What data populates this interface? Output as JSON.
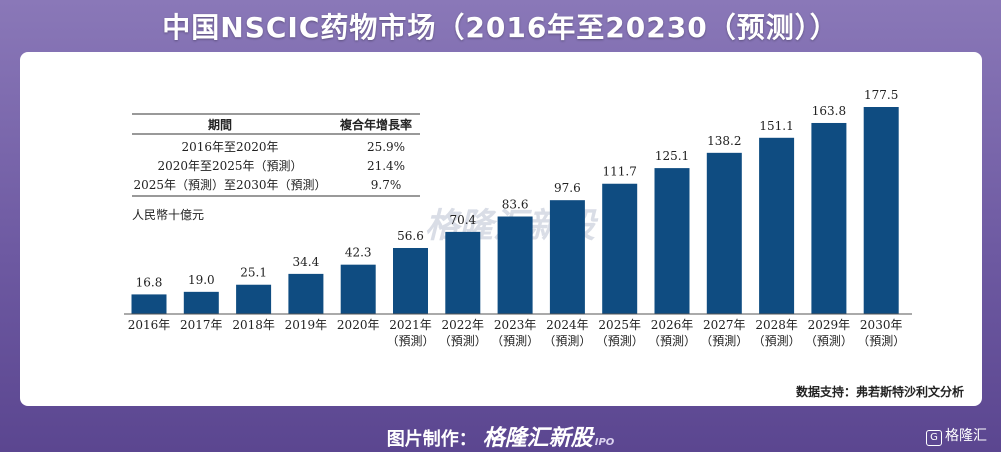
{
  "page_title": "中国NSCIC药物市场（2016年至20230（预测））",
  "chart_data": {
    "type": "bar",
    "categories": [
      "2016年",
      "2017年",
      "2018年",
      "2019年",
      "2020年",
      "2021年（預測）",
      "2022年（預測）",
      "2023年（預測）",
      "2024年（預測）",
      "2025年（預測）",
      "2026年（預測）",
      "2027年（預測）",
      "2028年（預測）",
      "2029年（預測）",
      "2030年（預測）"
    ],
    "category_lines": [
      [
        "2016年"
      ],
      [
        "2017年"
      ],
      [
        "2018年"
      ],
      [
        "2019年"
      ],
      [
        "2020年"
      ],
      [
        "2021年",
        "（預測）"
      ],
      [
        "2022年",
        "（預測）"
      ],
      [
        "2023年",
        "（預測）"
      ],
      [
        "2024年",
        "（預測）"
      ],
      [
        "2025年",
        "（預測）"
      ],
      [
        "2026年",
        "（預測）"
      ],
      [
        "2027年",
        "（預測）"
      ],
      [
        "2028年",
        "（預測）"
      ],
      [
        "2029年",
        "（預測）"
      ],
      [
        "2030年",
        "（預測）"
      ]
    ],
    "values": [
      16.8,
      19.0,
      25.1,
      34.4,
      42.3,
      56.6,
      70.4,
      83.6,
      97.6,
      111.7,
      125.1,
      138.2,
      151.1,
      163.8,
      177.5
    ],
    "value_labels": [
      "16.8",
      "19.0",
      "25.1",
      "34.4",
      "42.3",
      "56.6",
      "70.4",
      "83.6",
      "97.6",
      "111.7",
      "125.1",
      "138.2",
      "151.1",
      "163.8",
      "177.5"
    ],
    "ylim": [
      0,
      177.5
    ],
    "unit_label": "人民幣十億元",
    "bar_color": "#0f4c81",
    "grid": false,
    "cagr_table": {
      "headers": [
        "期間",
        "複合年增長率"
      ],
      "rows": [
        [
          "2016年至2020年",
          "25.9%"
        ],
        [
          "2020年至2025年（預測）",
          "21.4%"
        ],
        [
          "2025年（預測）至2030年（預測）",
          "9.7%"
        ]
      ]
    },
    "source": "数据支持：弗若斯特沙利文分析",
    "watermark": "格隆汇新股"
  },
  "footer": {
    "label": "图片制作：",
    "brand": "格隆汇新股",
    "brand_suffix": "IPO",
    "corner_logo": "格隆汇"
  },
  "colors": {
    "accent": "#0f4c81",
    "background": "#6e5aa2"
  }
}
